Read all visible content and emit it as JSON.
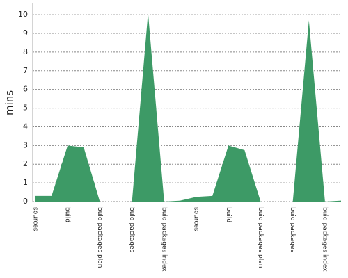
{
  "chart_data": {
    "type": "area",
    "y_label": "mins",
    "color": "#3d9a66",
    "grid": true,
    "categories": [
      "sources",
      null,
      "build",
      null,
      "buid packages plan",
      null,
      "buid packages",
      null,
      "buid packages index",
      null,
      "sources",
      null,
      "build",
      null,
      "buid packages plan",
      null,
      "buid packages",
      null,
      "buid packages index",
      null
    ],
    "values": [
      0.3,
      0.3,
      3.0,
      2.9,
      0,
      0,
      0,
      10.1,
      0,
      0.05,
      0.25,
      0.3,
      3.0,
      2.75,
      0,
      0,
      0,
      9.7,
      0,
      0.05
    ],
    "ylim": [
      0,
      10.6
    ],
    "yticks": [
      0,
      1,
      2,
      3,
      4,
      5,
      6,
      7,
      8,
      9,
      10
    ]
  }
}
